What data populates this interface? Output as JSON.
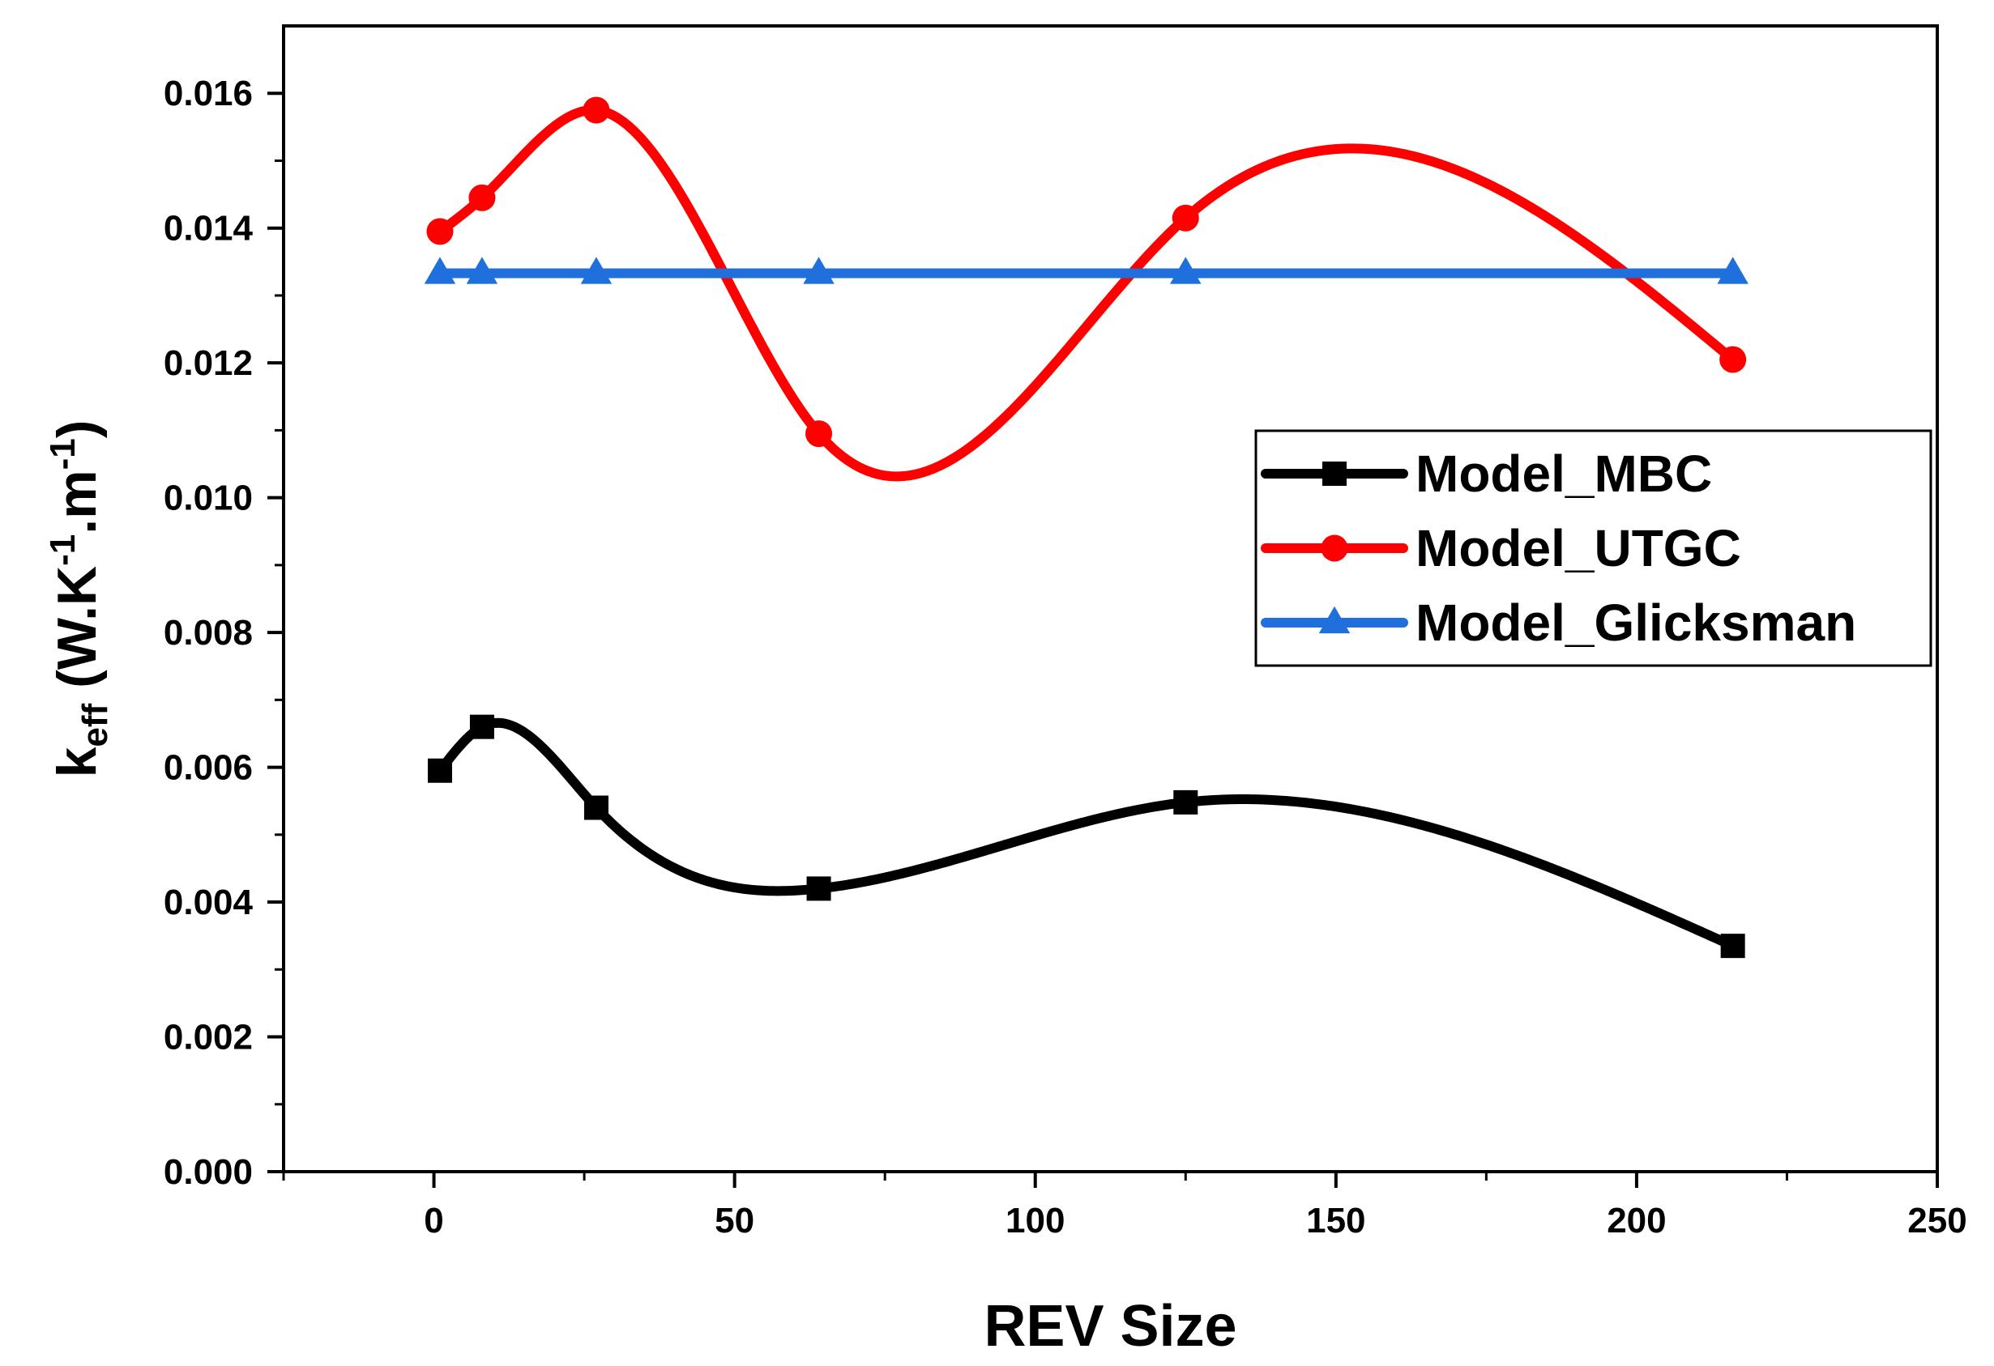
{
  "chart_data": {
    "type": "line",
    "title": "",
    "xlabel": "REV Size",
    "ylabel": {
      "base": "k",
      "sub": "eff",
      "unit_open": " (W.K",
      "sup1": "-1",
      "unit_mid": ".m",
      "sup2": "-1",
      "unit_close": ")"
    },
    "xlim": [
      -25,
      250
    ],
    "ylim": [
      0,
      0.017
    ],
    "x_ticks": [
      0,
      50,
      100,
      150,
      200,
      250
    ],
    "x_tick_labels": [
      "0",
      "50",
      "100",
      "150",
      "200",
      "250"
    ],
    "y_ticks": [
      0,
      0.002,
      0.004,
      0.006,
      0.008,
      0.01,
      0.012,
      0.014,
      0.016
    ],
    "y_tick_labels": [
      "0.000",
      "0.002",
      "0.004",
      "0.006",
      "0.008",
      "0.010",
      "0.012",
      "0.014",
      "0.016"
    ],
    "legend_position": "right",
    "series": [
      {
        "name": "Model_MBC",
        "color": "#000000",
        "marker": "square",
        "x": [
          1,
          8,
          27,
          64,
          125,
          216
        ],
        "y": [
          0.00595,
          0.0066,
          0.0054,
          0.0042,
          0.00548,
          0.00335
        ]
      },
      {
        "name": "Model_UTGC",
        "color": "#ff0000",
        "marker": "circle",
        "x": [
          1,
          8,
          27,
          64,
          125,
          216
        ],
        "y": [
          0.01395,
          0.01445,
          0.01575,
          0.01095,
          0.01415,
          0.01205
        ]
      },
      {
        "name": "Model_Glicksman",
        "color": "#1f6fdc",
        "marker": "triangle",
        "x": [
          1,
          8,
          27,
          64,
          125,
          216
        ],
        "y": [
          0.01333,
          0.01333,
          0.01333,
          0.01333,
          0.01333,
          0.01333
        ]
      }
    ]
  }
}
